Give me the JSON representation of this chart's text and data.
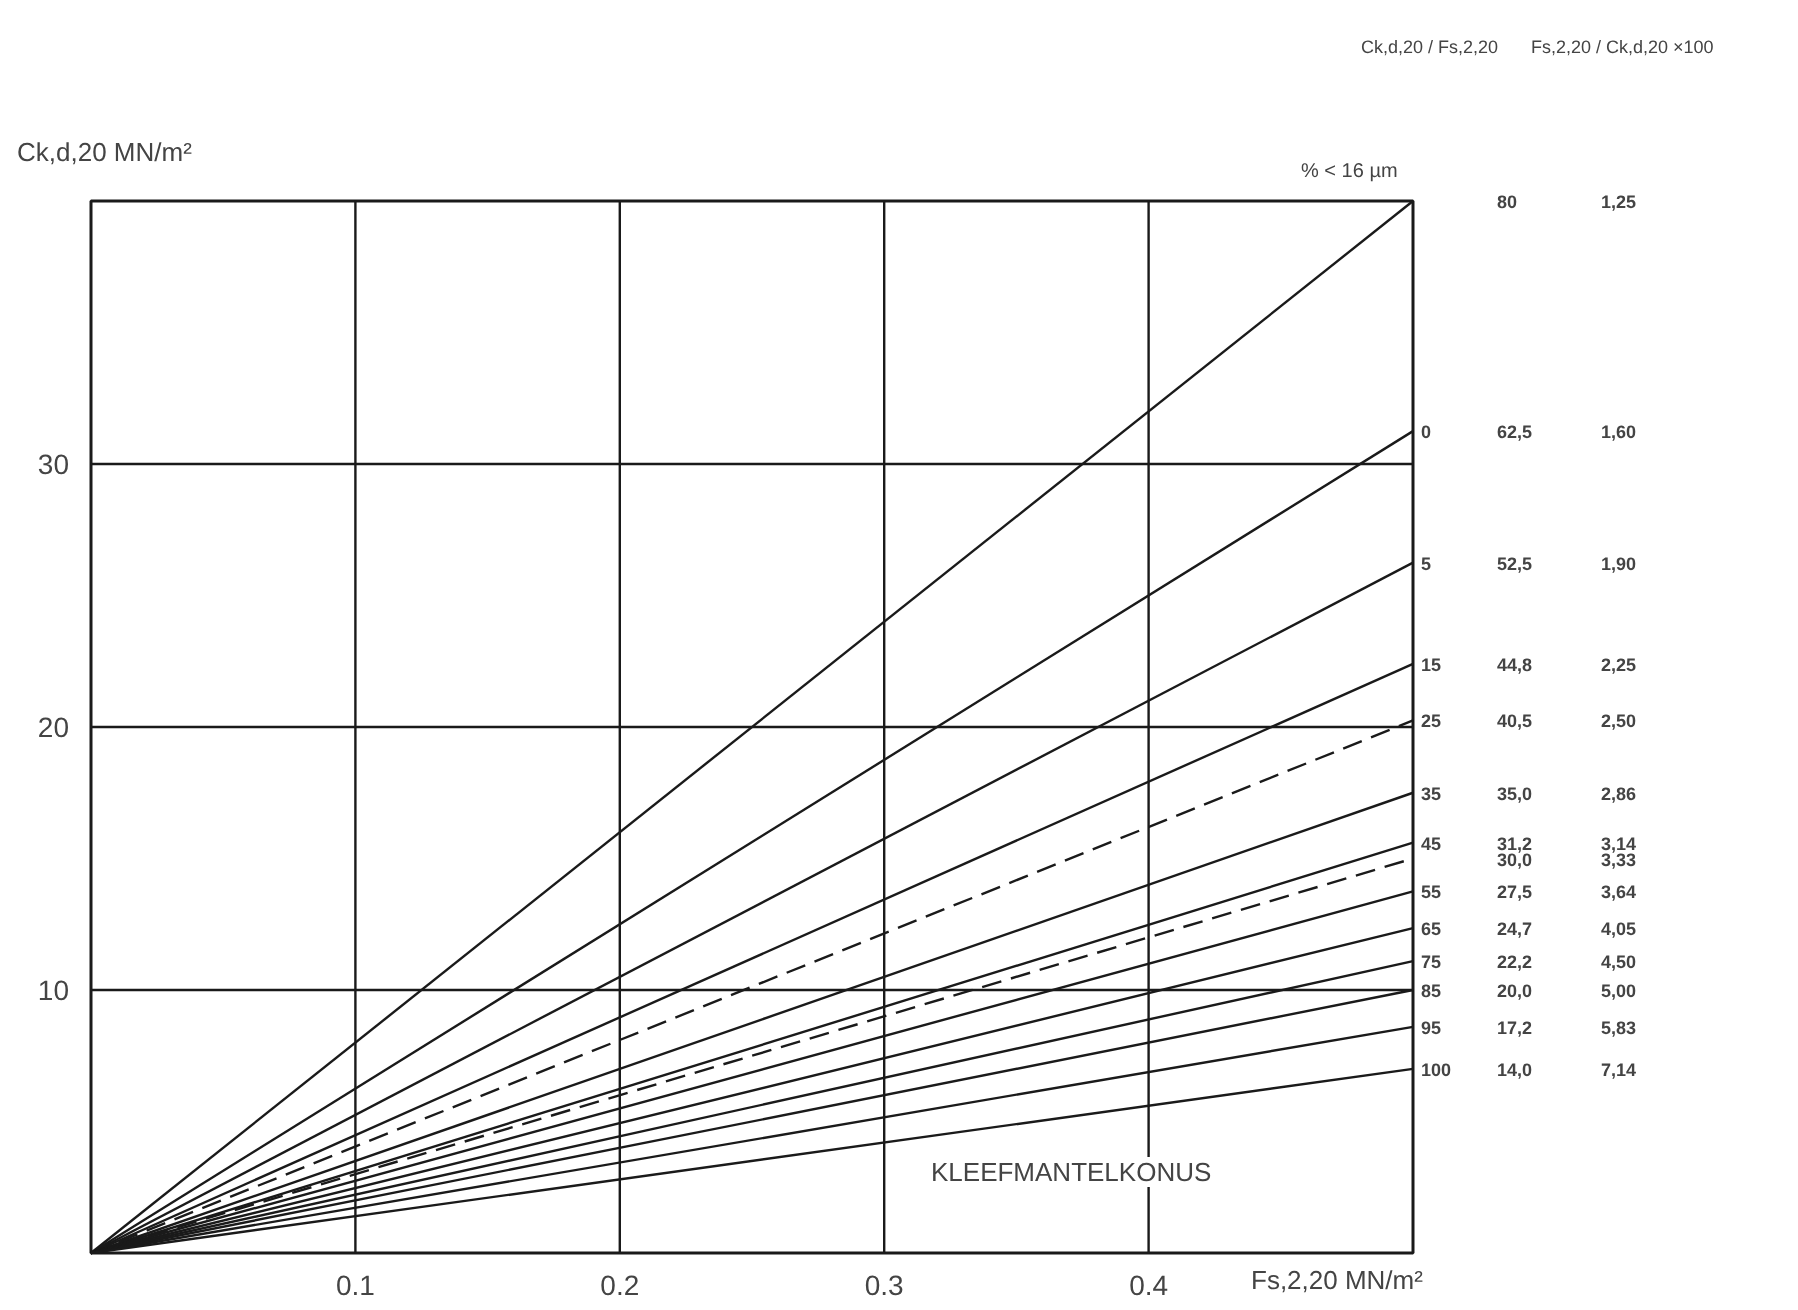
{
  "chart_data": {
    "type": "line",
    "xlabel": "Fs,2,20 MN/m²",
    "ylabel": "Ck,d,20 MN/m²",
    "xlim": [
      0,
      0.5
    ],
    "ylim": [
      0,
      40
    ],
    "xticks": [
      0.1,
      0.2,
      0.3,
      0.4
    ],
    "yticks": [
      10,
      20,
      30
    ],
    "grid": true,
    "marker": "none",
    "x": [
      0,
      0.5
    ],
    "series": [
      {
        "color": "#1a1a1a",
        "values": [
          0,
          40
        ],
        "line_style": "solid"
      },
      {
        "name": "0",
        "color": "#1a1a1a",
        "values": [
          0,
          31.25
        ],
        "line_style": "solid"
      },
      {
        "name": "5",
        "color": "#1a1a1a",
        "values": [
          0,
          26.25
        ],
        "line_style": "solid"
      },
      {
        "name": "15",
        "color": "#1a1a1a",
        "values": [
          0,
          22.4
        ],
        "line_style": "solid"
      },
      {
        "name": "25",
        "color": "#1a1a1a",
        "values": [
          0,
          20.25
        ],
        "line_style": "dashed"
      },
      {
        "name": "35",
        "color": "#1a1a1a",
        "values": [
          0,
          17.5
        ],
        "line_style": "solid"
      },
      {
        "name": "45",
        "color": "#1a1a1a",
        "values": [
          0,
          15.6
        ],
        "line_style": "solid"
      },
      {
        "color": "#1a1a1a",
        "values": [
          0,
          15
        ],
        "line_style": "dashed"
      },
      {
        "name": "55",
        "color": "#1a1a1a",
        "values": [
          0,
          13.75
        ],
        "line_style": "solid"
      },
      {
        "name": "65",
        "color": "#1a1a1a",
        "values": [
          0,
          12.35
        ],
        "line_style": "solid"
      },
      {
        "name": "75",
        "color": "#1a1a1a",
        "values": [
          0,
          11.1
        ],
        "line_style": "solid"
      },
      {
        "name": "85",
        "color": "#1a1a1a",
        "values": [
          0,
          10
        ],
        "line_style": "solid"
      },
      {
        "name": "95",
        "color": "#1a1a1a",
        "values": [
          0,
          8.6
        ],
        "line_style": "solid"
      },
      {
        "name": "100",
        "color": "#1a1a1a",
        "values": [
          0,
          7
        ],
        "line_style": "solid"
      }
    ],
    "annotations": [
      "% < 16 µm",
      "Ck,d,20 / Fs,2,20",
      "Fs,2,20 / Ck,d,20 ×100",
      "KLEEFMANTELKONUS",
      "80",
      "62,5",
      "52,5",
      "44,8",
      "40,5",
      "35,0",
      "31,2",
      "30,0",
      "27,5",
      "24,7",
      "22,2",
      "20,0",
      "17,2",
      "14,0",
      "1,25",
      "1,60",
      "1,90",
      "2,25",
      "2,50",
      "2,86",
      "3,14",
      "3,33",
      "3,64",
      "4,05",
      "4,50",
      "5,00",
      "5,83",
      "7,14"
    ]
  }
}
